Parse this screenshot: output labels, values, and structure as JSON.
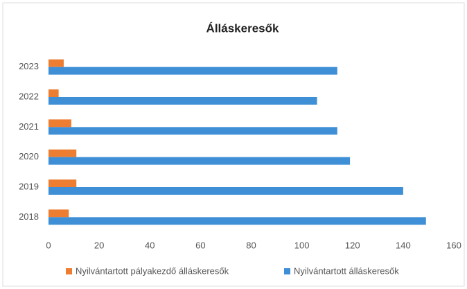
{
  "chart_data": {
    "type": "hbar",
    "title": "Álláskeresők",
    "categories": [
      "2018",
      "2019",
      "2020",
      "2021",
      "2022",
      "2023"
    ],
    "series": [
      {
        "name": "Nyilvántartott pályakezdő álláskeresők",
        "color": "#ed7d31",
        "values": [
          8,
          11,
          11,
          9,
          4,
          6
        ]
      },
      {
        "name": "Nyilvántartott álláskeresők",
        "color": "#3f8fd6",
        "values": [
          149,
          140,
          119,
          114,
          106,
          114
        ]
      }
    ],
    "xlim": [
      0,
      160
    ],
    "xticks": [
      0,
      20,
      40,
      60,
      80,
      100,
      120,
      140,
      160
    ],
    "grid": false,
    "legend": "bottom"
  }
}
